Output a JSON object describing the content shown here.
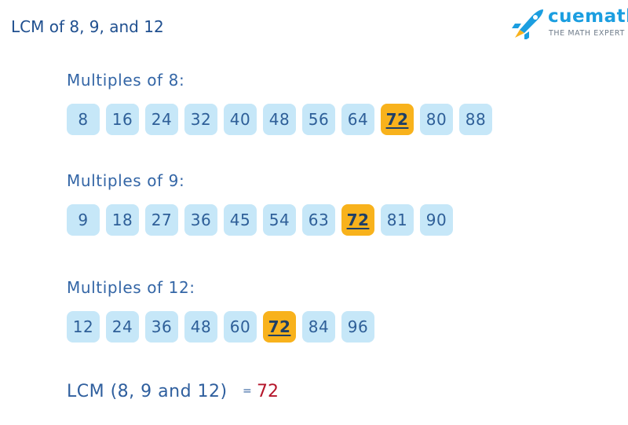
{
  "header": {
    "title": "LCM of 8, 9,  and 12",
    "brand": "cuemath",
    "tagline": "THE MATH EXPERT"
  },
  "rows": [
    {
      "label": "Multiples of 8:",
      "multiples": [
        8,
        16,
        24,
        32,
        40,
        48,
        56,
        64,
        72,
        80,
        88
      ]
    },
    {
      "label": "Multiples of 9:",
      "multiples": [
        9,
        18,
        27,
        36,
        45,
        54,
        63,
        72,
        81,
        90
      ]
    },
    {
      "label": "Multiples of 12:",
      "multiples": [
        12,
        24,
        36,
        48,
        60,
        72,
        84,
        96
      ]
    }
  ],
  "result": {
    "label": "LCM (8, 9 and 12)",
    "equals": "=",
    "value": 72
  }
}
